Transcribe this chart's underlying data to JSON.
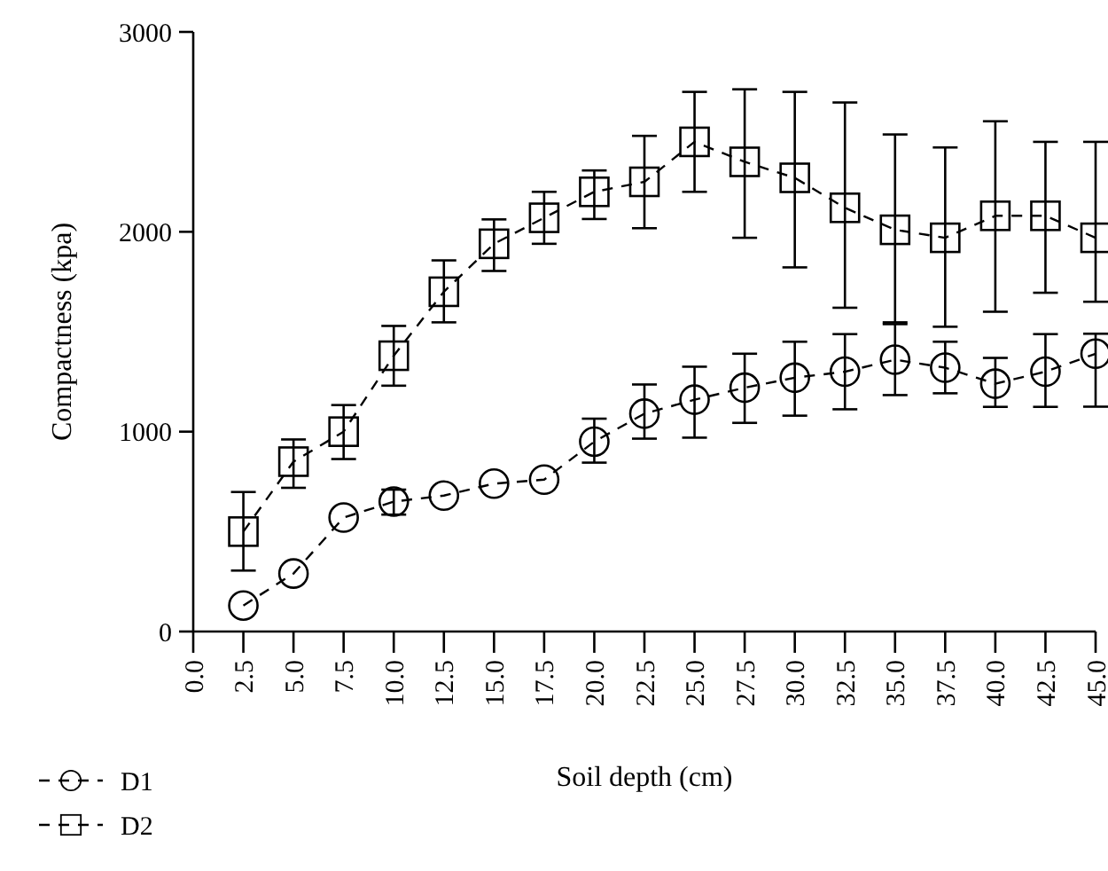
{
  "chart_data": {
    "type": "line",
    "xlabel": "Soil depth (cm)",
    "ylabel": "Compactness (kpa)",
    "x": [
      2.5,
      5,
      7.5,
      10,
      12.5,
      15,
      17.5,
      20,
      22.5,
      25,
      27.5,
      30,
      32.5,
      35,
      37.5,
      40,
      42.5,
      45
    ],
    "series": [
      {
        "name": "D1",
        "color": "#000000",
        "marker": "circle",
        "values": [
          130,
          290,
          570,
          650,
          680,
          740,
          760,
          950,
          1090,
          1160,
          1220,
          1270,
          1300,
          1360,
          1320,
          1240,
          1300,
          1390
        ],
        "errors": [
          null,
          null,
          null,
          [
            585,
            710
          ],
          null,
          null,
          null,
          [
            845,
            1065
          ],
          [
            965,
            1236
          ],
          [
            970,
            1325
          ],
          [
            1044,
            1390
          ],
          [
            1080,
            1450
          ],
          [
            1112,
            1488
          ],
          [
            1183,
            1538
          ],
          [
            1192,
            1450
          ],
          [
            1124,
            1369
          ],
          [
            1124,
            1488
          ],
          [
            1125,
            1490
          ]
        ]
      },
      {
        "name": "D2",
        "color": "#000000",
        "marker": "square",
        "values": [
          500,
          850,
          1000,
          1380,
          1700,
          1940,
          2070,
          2200,
          2250,
          2450,
          2350,
          2270,
          2120,
          2010,
          1970,
          2080,
          2080,
          1970
        ],
        "errors": [
          [
            305,
            698
          ],
          [
            719,
            961
          ],
          [
            863,
            1133
          ],
          [
            1230,
            1529
          ],
          [
            1547,
            1857
          ],
          [
            1804,
            2062
          ],
          [
            1940,
            2200
          ],
          [
            2064,
            2307
          ],
          [
            2018,
            2480
          ],
          [
            2200,
            2700
          ],
          [
            1970,
            2713
          ],
          [
            1822,
            2700
          ],
          [
            1620,
            2647
          ],
          [
            1547,
            2487
          ],
          [
            1525,
            2422
          ],
          [
            1600,
            2553
          ],
          [
            1695,
            2450
          ],
          [
            1650,
            2450
          ]
        ]
      }
    ],
    "line_style": "dashed",
    "legend": "bottom left",
    "grid": false,
    "xlim": [
      0,
      45
    ],
    "xticks": [
      {
        "value": 0,
        "label": "0.0"
      },
      {
        "value": 2.5,
        "label": "2.5"
      },
      {
        "value": 5,
        "label": "5.0"
      },
      {
        "value": 7.5,
        "label": "7.5"
      },
      {
        "value": 10,
        "label": "10.0"
      },
      {
        "value": 12.5,
        "label": "12.5"
      },
      {
        "value": 15,
        "label": "15.0"
      },
      {
        "value": 17.5,
        "label": "17.5"
      },
      {
        "value": 20,
        "label": "20.0"
      },
      {
        "value": 22.5,
        "label": "22.5"
      },
      {
        "value": 25,
        "label": "25.0"
      },
      {
        "value": 27.5,
        "label": "27.5"
      },
      {
        "value": 30,
        "label": "30.0"
      },
      {
        "value": 32.5,
        "label": "32.5"
      },
      {
        "value": 35,
        "label": "35.0"
      },
      {
        "value": 37.5,
        "label": "37.5"
      },
      {
        "value": 40,
        "label": "40.0"
      },
      {
        "value": 42.5,
        "label": "42.5"
      },
      {
        "value": 45,
        "label": "45.0"
      }
    ],
    "ylim": [
      0,
      3000
    ],
    "yticks": [
      0,
      1000,
      2000,
      3000
    ]
  }
}
